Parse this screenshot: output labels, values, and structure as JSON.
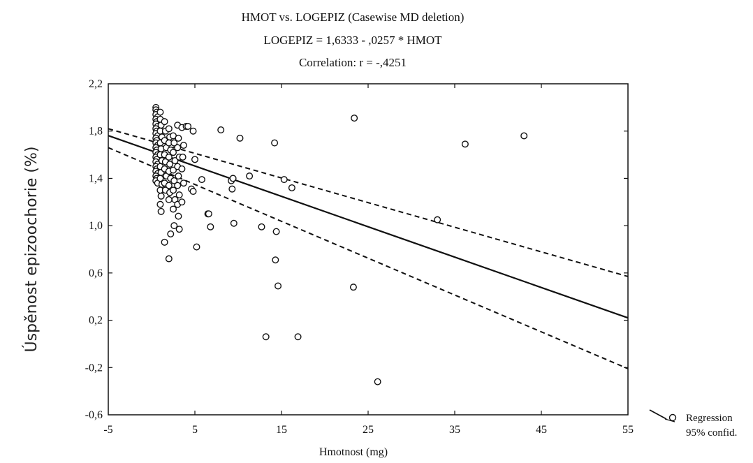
{
  "chart_data": {
    "type": "scatter",
    "title": "HMOT vs. LOGEPIZ (Casewise MD deletion)",
    "subtitle": "LOGEPIZ = 1,6333 - ,0257 * HMOT",
    "annotation": "Correlation: r = -,4251",
    "xlabel": "Hmotnost (mg)",
    "ylabel": "Úspěnost epizoochorie (%)",
    "xlim": [
      -5,
      55
    ],
    "ylim": [
      -0.6,
      2.2
    ],
    "x_ticks": [
      "-5",
      "5",
      "15",
      "25",
      "35",
      "45",
      "55"
    ],
    "y_ticks": [
      "-0,6",
      "-0,2",
      "0,2",
      "0,6",
      "1,0",
      "1,4",
      "1,8",
      "2,2"
    ],
    "grid": false,
    "legend_position": "bottom-right",
    "legend": [
      "Regression",
      "95% confid."
    ],
    "regression": {
      "intercept": 1.6333,
      "slope": -0.0257
    },
    "confidence_band": {
      "x": [
        -5,
        55
      ],
      "upper": [
        1.82,
        0.57
      ],
      "lower": [
        1.66,
        -0.21
      ]
    },
    "points": [
      [
        0.5,
        2.0
      ],
      [
        0.5,
        1.98
      ],
      [
        0.6,
        1.96
      ],
      [
        0.5,
        1.94
      ],
      [
        0.7,
        1.92
      ],
      [
        0.5,
        1.9
      ],
      [
        0.6,
        1.88
      ],
      [
        0.5,
        1.86
      ],
      [
        0.7,
        1.84
      ],
      [
        0.5,
        1.82
      ],
      [
        0.6,
        1.8
      ],
      [
        0.5,
        1.78
      ],
      [
        0.7,
        1.76
      ],
      [
        0.5,
        1.74
      ],
      [
        0.6,
        1.72
      ],
      [
        0.5,
        1.7
      ],
      [
        0.7,
        1.68
      ],
      [
        0.5,
        1.66
      ],
      [
        0.6,
        1.64
      ],
      [
        0.5,
        1.62
      ],
      [
        0.7,
        1.6
      ],
      [
        0.5,
        1.58
      ],
      [
        0.6,
        1.56
      ],
      [
        0.5,
        1.54
      ],
      [
        0.7,
        1.52
      ],
      [
        0.5,
        1.5
      ],
      [
        0.6,
        1.48
      ],
      [
        0.5,
        1.46
      ],
      [
        0.7,
        1.44
      ],
      [
        0.5,
        1.42
      ],
      [
        0.6,
        1.4
      ],
      [
        0.5,
        1.38
      ],
      [
        0.7,
        1.36
      ],
      [
        1.0,
        1.96
      ],
      [
        1.0,
        1.9
      ],
      [
        1.1,
        1.85
      ],
      [
        1.0,
        1.8
      ],
      [
        1.2,
        1.75
      ],
      [
        1.0,
        1.7
      ],
      [
        1.1,
        1.65
      ],
      [
        1.0,
        1.6
      ],
      [
        1.2,
        1.55
      ],
      [
        1.0,
        1.5
      ],
      [
        1.1,
        1.45
      ],
      [
        1.0,
        1.4
      ],
      [
        1.2,
        1.35
      ],
      [
        1.0,
        1.3
      ],
      [
        1.1,
        1.25
      ],
      [
        1.0,
        1.18
      ],
      [
        1.1,
        1.12
      ],
      [
        1.5,
        1.88
      ],
      [
        1.6,
        1.8
      ],
      [
        1.5,
        1.72
      ],
      [
        1.7,
        1.66
      ],
      [
        1.5,
        1.6
      ],
      [
        1.6,
        1.54
      ],
      [
        1.5,
        1.48
      ],
      [
        1.7,
        1.42
      ],
      [
        1.5,
        1.36
      ],
      [
        1.6,
        1.3
      ],
      [
        1.5,
        0.86
      ],
      [
        2.0,
        1.82
      ],
      [
        2.1,
        1.75
      ],
      [
        2.0,
        1.7
      ],
      [
        2.2,
        1.64
      ],
      [
        2.0,
        1.58
      ],
      [
        2.1,
        1.52
      ],
      [
        2.0,
        1.46
      ],
      [
        2.2,
        1.4
      ],
      [
        2.0,
        1.34
      ],
      [
        2.1,
        1.28
      ],
      [
        2.0,
        1.22
      ],
      [
        2.0,
        0.72
      ],
      [
        2.2,
        0.93
      ],
      [
        2.5,
        1.76
      ],
      [
        2.6,
        1.7
      ],
      [
        2.5,
        1.62
      ],
      [
        2.7,
        1.55
      ],
      [
        2.5,
        1.47
      ],
      [
        2.6,
        1.38
      ],
      [
        2.5,
        1.3
      ],
      [
        2.7,
        1.22
      ],
      [
        2.5,
        1.14
      ],
      [
        2.6,
        1.0
      ],
      [
        3.0,
        1.85
      ],
      [
        3.1,
        1.74
      ],
      [
        3.0,
        1.66
      ],
      [
        3.2,
        1.58
      ],
      [
        3.0,
        1.5
      ],
      [
        3.1,
        1.42
      ],
      [
        3.0,
        1.34
      ],
      [
        3.2,
        1.26
      ],
      [
        3.0,
        1.18
      ],
      [
        3.1,
        1.08
      ],
      [
        3.2,
        0.97
      ],
      [
        3.5,
        1.83
      ],
      [
        3.7,
        1.68
      ],
      [
        3.6,
        1.58
      ],
      [
        3.5,
        1.48
      ],
      [
        3.7,
        1.36
      ],
      [
        3.5,
        1.2
      ],
      [
        4.0,
        1.84
      ],
      [
        4.2,
        1.84
      ],
      [
        4.8,
        1.8
      ],
      [
        4.6,
        1.31
      ],
      [
        4.8,
        1.29
      ],
      [
        5.0,
        1.56
      ],
      [
        5.2,
        0.82
      ],
      [
        5.8,
        1.39
      ],
      [
        6.5,
        1.1
      ],
      [
        6.6,
        1.1
      ],
      [
        6.8,
        0.99
      ],
      [
        8.0,
        1.81
      ],
      [
        9.2,
        1.38
      ],
      [
        9.4,
        1.4
      ],
      [
        9.3,
        1.31
      ],
      [
        9.5,
        1.02
      ],
      [
        10.2,
        1.74
      ],
      [
        11.3,
        1.42
      ],
      [
        12.7,
        0.99
      ],
      [
        13.2,
        0.06
      ],
      [
        14.2,
        1.7
      ],
      [
        14.4,
        0.95
      ],
      [
        14.3,
        0.71
      ],
      [
        14.6,
        0.49
      ],
      [
        15.3,
        1.39
      ],
      [
        16.2,
        1.32
      ],
      [
        16.9,
        0.06
      ],
      [
        23.4,
        1.91
      ],
      [
        23.3,
        0.48
      ],
      [
        26.1,
        -0.32
      ],
      [
        33.0,
        1.05
      ],
      [
        36.2,
        1.69
      ],
      [
        43.0,
        1.76
      ]
    ]
  }
}
